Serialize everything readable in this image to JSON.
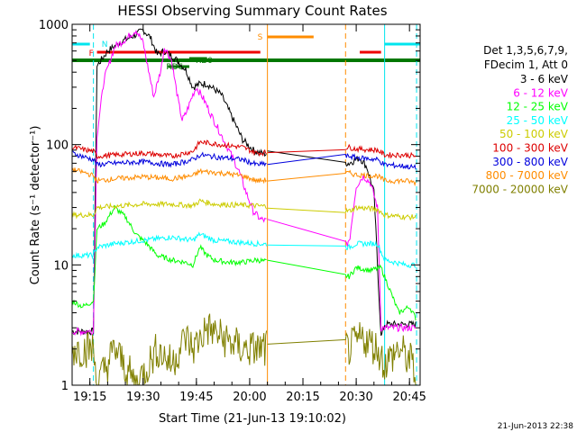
{
  "chart_data": {
    "type": "line",
    "title": "HESSI Observing Summary Count Rates",
    "xlabel": "Start Time (21-Jun-13 19:10:02)",
    "ylabel": "Count Rate (s⁻¹ detector⁻¹)",
    "x_scale": "time",
    "x_range": [
      "19:10",
      "20:48"
    ],
    "x_ticks": [
      "19:15",
      "19:30",
      "19:45",
      "20:00",
      "20:15",
      "20:30",
      "20:45"
    ],
    "y_scale": "log",
    "ylim": [
      1,
      1000
    ],
    "y_ticks": [
      "1",
      "10",
      "100",
      "1000"
    ],
    "grid": false,
    "timestamp": "21-Jun-2013 22:38",
    "legend": {
      "placement": "right",
      "header": [
        "Det 1,3,5,6,7,9,",
        "FDecim 1, Att 0"
      ],
      "entries": [
        {
          "label": "3 - 6 keV",
          "color": "#000000"
        },
        {
          "label": "6 - 12 keV",
          "color": "#ff00ff"
        },
        {
          "label": "12 - 25 keV",
          "color": "#00ff00"
        },
        {
          "label": "25 - 50 keV",
          "color": "#00ffff"
        },
        {
          "label": "50 - 100 keV",
          "color": "#cccc00"
        },
        {
          "label": "100 - 300 keV",
          "color": "#dd0000"
        },
        {
          "label": "300 - 800 keV",
          "color": "#0000dd"
        },
        {
          "label": "800 - 7000 keV",
          "color": "#ff8c00"
        },
        {
          "label": "7000 - 20000 keV",
          "color": "#808000"
        }
      ]
    },
    "flags": [
      {
        "label": "N",
        "color": "#00e5ee",
        "segments": [
          [
            "19:10",
            "19:15"
          ],
          [
            "20:38",
            "20:48"
          ]
        ]
      },
      {
        "label": "F",
        "color": "#ee0000",
        "segments": [
          [
            "19:17",
            "20:03"
          ],
          [
            "20:31",
            "20:37"
          ]
        ]
      },
      {
        "label": "S",
        "color": "#ff8c00",
        "segments": [
          [
            "20:05",
            "20:18"
          ]
        ]
      },
      {
        "label": "RD0",
        "color": "#007700",
        "segments": [
          [
            "19:43",
            "19:48"
          ]
        ]
      },
      {
        "label": "RD6",
        "color": "#007700",
        "segments": [
          [
            "19:37",
            "19:43"
          ]
        ]
      },
      {
        "label": "",
        "color": "#007700",
        "segments": [
          [
            "19:10",
            "20:48"
          ]
        ]
      }
    ],
    "markers": [
      {
        "type": "night",
        "color": "#00e5ee",
        "times": [
          "19:16",
          "20:38",
          "20:47"
        ]
      },
      {
        "type": "saa",
        "color": "#ff8c00",
        "times": [
          "20:05",
          "20:27"
        ]
      }
    ],
    "gaps": [
      [
        "20:05",
        "20:27"
      ]
    ],
    "series": [
      {
        "name": "3 - 6 keV",
        "color": "#000000",
        "x": [
          "19:10",
          "19:14",
          "19:16",
          "19:17",
          "19:20",
          "19:24",
          "19:28",
          "19:30",
          "19:32",
          "19:34",
          "19:36",
          "19:39",
          "19:42",
          "19:44",
          "19:46",
          "19:48",
          "19:52",
          "19:55",
          "19:58",
          "20:01",
          "20:03",
          "20:28",
          "20:31",
          "20:33",
          "20:35",
          "20:37",
          "20:38",
          "20:40",
          "20:44",
          "20:47"
        ],
        "y": [
          2.8,
          2.8,
          2.8,
          450,
          600,
          720,
          820,
          900,
          780,
          560,
          600,
          520,
          420,
          300,
          320,
          320,
          260,
          170,
          110,
          90,
          85,
          70,
          78,
          65,
          40,
          2.5,
          3.2,
          3.2,
          3.2,
          3.2
        ]
      },
      {
        "name": "6 - 12 keV",
        "color": "#ff00ff",
        "x": [
          "19:10",
          "19:14",
          "19:16",
          "19:17",
          "19:19",
          "19:22",
          "19:25",
          "19:28",
          "19:30",
          "19:32",
          "19:33",
          "19:35",
          "19:36",
          "19:38",
          "19:40",
          "19:41",
          "19:42",
          "19:44",
          "19:45",
          "19:47",
          "19:49",
          "19:52",
          "19:55",
          "19:57",
          "19:59",
          "20:01",
          "20:03",
          "20:28",
          "20:30",
          "20:32",
          "20:34",
          "20:36",
          "20:37",
          "20:47"
        ],
        "y": [
          2.8,
          2.8,
          2.8,
          120,
          350,
          650,
          750,
          900,
          700,
          350,
          250,
          420,
          650,
          500,
          220,
          160,
          180,
          260,
          300,
          240,
          180,
          120,
          80,
          60,
          40,
          28,
          24,
          15,
          45,
          55,
          48,
          30,
          3,
          3
        ]
      },
      {
        "name": "12 - 25 keV",
        "color": "#00ff00",
        "x": [
          "19:10",
          "19:13",
          "19:16",
          "19:17",
          "19:19",
          "19:22",
          "19:25",
          "19:28",
          "19:31",
          "19:34",
          "19:38",
          "19:42",
          "19:44",
          "19:46",
          "19:48",
          "19:50",
          "19:54",
          "19:58",
          "20:02",
          "20:28",
          "20:30",
          "20:34",
          "20:37",
          "20:42",
          "20:45",
          "20:47"
        ],
        "y": [
          5,
          4.5,
          5,
          20,
          22,
          30,
          25,
          18,
          15,
          12,
          11,
          10.5,
          10,
          14,
          12,
          11,
          10.5,
          10.5,
          11,
          8,
          9.5,
          9,
          9.5,
          4,
          4.5,
          3.5
        ]
      },
      {
        "name": "25 - 50 keV",
        "color": "#00ffff",
        "x": [
          "19:10",
          "19:16",
          "19:17",
          "19:22",
          "19:30",
          "19:38",
          "19:44",
          "19:46",
          "19:50",
          "20:02",
          "20:28",
          "20:30",
          "20:36",
          "20:38",
          "20:44",
          "20:47"
        ],
        "y": [
          12,
          12,
          14,
          15,
          16,
          17,
          16,
          18,
          16,
          15,
          14,
          15,
          15,
          11,
          10,
          10
        ]
      },
      {
        "name": "50 - 100 keV",
        "color": "#cccc00",
        "x": [
          "19:10",
          "19:16",
          "19:17",
          "19:30",
          "19:38",
          "19:44",
          "19:46",
          "19:50",
          "20:02",
          "20:28",
          "20:30",
          "20:36",
          "20:38",
          "20:44",
          "20:47"
        ],
        "y": [
          26,
          26,
          30,
          32,
          32,
          31,
          34,
          32,
          31,
          28,
          30,
          29,
          26,
          25,
          25
        ]
      },
      {
        "name": "100 - 300 keV",
        "color": "#dd0000",
        "x": [
          "19:10",
          "19:14",
          "19:16",
          "19:17",
          "19:22",
          "19:30",
          "19:38",
          "19:44",
          "19:46",
          "19:52",
          "19:58",
          "20:02",
          "20:28",
          "20:30",
          "20:36",
          "20:38",
          "20:44",
          "20:47"
        ],
        "y": [
          95,
          90,
          88,
          80,
          82,
          85,
          80,
          88,
          105,
          100,
          95,
          85,
          95,
          92,
          90,
          82,
          82,
          80
        ]
      },
      {
        "name": "300 - 800 keV",
        "color": "#0000dd",
        "x": [
          "19:10",
          "19:14",
          "19:16",
          "19:17",
          "19:22",
          "19:30",
          "19:38",
          "19:44",
          "19:46",
          "19:52",
          "19:58",
          "20:02",
          "20:28",
          "20:30",
          "20:36",
          "20:38",
          "20:44",
          "20:47"
        ],
        "y": [
          85,
          78,
          75,
          68,
          70,
          72,
          68,
          75,
          82,
          78,
          75,
          68,
          80,
          78,
          75,
          68,
          66,
          64
        ]
      },
      {
        "name": "800 - 7000 keV",
        "color": "#ff8c00",
        "x": [
          "19:10",
          "19:14",
          "19:16",
          "19:17",
          "19:22",
          "19:30",
          "19:38",
          "19:44",
          "19:46",
          "19:52",
          "19:58",
          "20:02",
          "20:28",
          "20:30",
          "20:36",
          "20:38",
          "20:44",
          "20:47"
        ],
        "y": [
          62,
          58,
          55,
          50,
          52,
          54,
          52,
          55,
          60,
          58,
          55,
          50,
          58,
          56,
          55,
          50,
          50,
          48
        ]
      },
      {
        "name": "7000 - 20000 keV",
        "color": "#808000",
        "x": [
          "19:10",
          "19:13",
          "19:16",
          "19:17",
          "19:22",
          "19:28",
          "19:34",
          "19:38",
          "19:42",
          "19:44",
          "19:48",
          "19:52",
          "19:58",
          "20:02",
          "20:28",
          "20:32",
          "20:36",
          "20:38",
          "20:42",
          "20:46",
          "20:47"
        ],
        "y": [
          2,
          2,
          2,
          1,
          2,
          1,
          2,
          1.5,
          2.5,
          2,
          3,
          2.5,
          2,
          2,
          2,
          2.5,
          2,
          1.5,
          2,
          1.5,
          1
        ]
      }
    ]
  }
}
